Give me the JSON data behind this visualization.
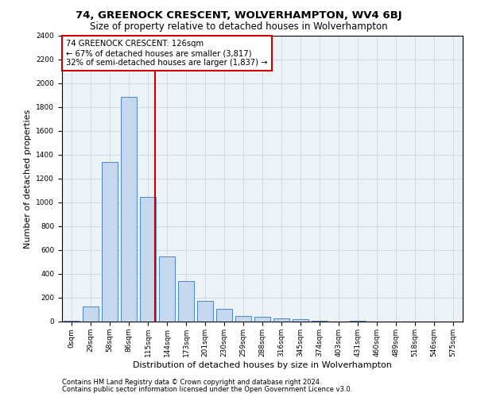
{
  "title_line1": "74, GREENOCK CRESCENT, WOLVERHAMPTON, WV4 6BJ",
  "title_line2": "Size of property relative to detached houses in Wolverhampton",
  "xlabel": "Distribution of detached houses by size in Wolverhampton",
  "ylabel": "Number of detached properties",
  "footnote1": "Contains HM Land Registry data © Crown copyright and database right 2024.",
  "footnote2": "Contains public sector information licensed under the Open Government Licence v3.0.",
  "annotation_line1": "74 GREENOCK CRESCENT: 126sqm",
  "annotation_line2": "← 67% of detached houses are smaller (3,817)",
  "annotation_line3": "32% of semi-detached houses are larger (1,837) →",
  "categories": [
    "0sqm",
    "29sqm",
    "58sqm",
    "86sqm",
    "115sqm",
    "144sqm",
    "173sqm",
    "201sqm",
    "230sqm",
    "259sqm",
    "288sqm",
    "316sqm",
    "345sqm",
    "374sqm",
    "403sqm",
    "431sqm",
    "460sqm",
    "489sqm",
    "518sqm",
    "546sqm",
    "575sqm"
  ],
  "values": [
    5,
    130,
    1340,
    1890,
    1050,
    545,
    340,
    175,
    105,
    50,
    40,
    30,
    20,
    10,
    3,
    10,
    2,
    1,
    1,
    1,
    1
  ],
  "bar_color": "#c5d8ed",
  "bar_edge_color": "#4a86c8",
  "vline_color": "#cc0000",
  "ylim": [
    0,
    2400
  ],
  "yticks": [
    0,
    200,
    400,
    600,
    800,
    1000,
    1200,
    1400,
    1600,
    1800,
    2000,
    2200,
    2400
  ],
  "grid_color": "#c8d0d8",
  "bg_color": "#edf2f7",
  "annotation_box_color": "#cc0000",
  "title1_fontsize": 9.5,
  "title2_fontsize": 8.5,
  "axis_label_fontsize": 8,
  "tick_fontsize": 6.5,
  "annotation_fontsize": 7.2,
  "footnote_fontsize": 6
}
